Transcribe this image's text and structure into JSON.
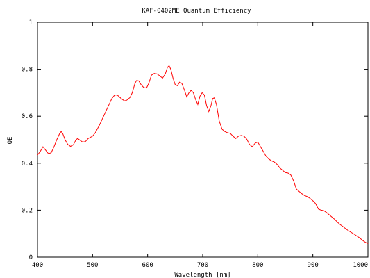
{
  "chart_data": {
    "type": "line",
    "title": "KAF-0402ME Quantum Efficiency",
    "xlabel": "Wavelength [nm]",
    "ylabel": "QE",
    "xlim": [
      400,
      1000
    ],
    "ylim": [
      0,
      1
    ],
    "xticks": [
      "400",
      "500",
      "600",
      "700",
      "800",
      "900",
      "1000"
    ],
    "yticks": [
      "0",
      "0.2",
      "0.4",
      "0.6",
      "0.8",
      "1"
    ],
    "grid": false,
    "series": [
      {
        "color": "#ff0000",
        "points": [
          [
            400,
            0.435
          ],
          [
            405,
            0.45
          ],
          [
            410,
            0.47
          ],
          [
            415,
            0.455
          ],
          [
            420,
            0.44
          ],
          [
            425,
            0.445
          ],
          [
            430,
            0.47
          ],
          [
            435,
            0.5
          ],
          [
            440,
            0.525
          ],
          [
            443,
            0.535
          ],
          [
            446,
            0.525
          ],
          [
            450,
            0.5
          ],
          [
            455,
            0.48
          ],
          [
            460,
            0.472
          ],
          [
            465,
            0.478
          ],
          [
            470,
            0.5
          ],
          [
            473,
            0.505
          ],
          [
            477,
            0.498
          ],
          [
            482,
            0.49
          ],
          [
            487,
            0.492
          ],
          [
            492,
            0.505
          ],
          [
            500,
            0.515
          ],
          [
            505,
            0.53
          ],
          [
            512,
            0.56
          ],
          [
            520,
            0.6
          ],
          [
            528,
            0.64
          ],
          [
            535,
            0.675
          ],
          [
            540,
            0.69
          ],
          [
            545,
            0.69
          ],
          [
            552,
            0.675
          ],
          [
            558,
            0.665
          ],
          [
            562,
            0.668
          ],
          [
            568,
            0.68
          ],
          [
            572,
            0.7
          ],
          [
            577,
            0.74
          ],
          [
            580,
            0.752
          ],
          [
            584,
            0.75
          ],
          [
            588,
            0.735
          ],
          [
            593,
            0.722
          ],
          [
            598,
            0.72
          ],
          [
            602,
            0.74
          ],
          [
            607,
            0.775
          ],
          [
            612,
            0.782
          ],
          [
            617,
            0.78
          ],
          [
            622,
            0.772
          ],
          [
            627,
            0.762
          ],
          [
            632,
            0.78
          ],
          [
            636,
            0.808
          ],
          [
            639,
            0.815
          ],
          [
            642,
            0.8
          ],
          [
            646,
            0.762
          ],
          [
            650,
            0.735
          ],
          [
            654,
            0.73
          ],
          [
            658,
            0.745
          ],
          [
            662,
            0.74
          ],
          [
            667,
            0.71
          ],
          [
            671,
            0.682
          ],
          [
            675,
            0.7
          ],
          [
            679,
            0.71
          ],
          [
            683,
            0.7
          ],
          [
            687,
            0.672
          ],
          [
            691,
            0.65
          ],
          [
            695,
            0.685
          ],
          [
            699,
            0.7
          ],
          [
            703,
            0.69
          ],
          [
            707,
            0.645
          ],
          [
            711,
            0.62
          ],
          [
            715,
            0.645
          ],
          [
            718,
            0.675
          ],
          [
            721,
            0.678
          ],
          [
            725,
            0.65
          ],
          [
            730,
            0.58
          ],
          [
            735,
            0.545
          ],
          [
            740,
            0.535
          ],
          [
            745,
            0.53
          ],
          [
            750,
            0.527
          ],
          [
            755,
            0.515
          ],
          [
            760,
            0.505
          ],
          [
            765,
            0.515
          ],
          [
            770,
            0.518
          ],
          [
            775,
            0.515
          ],
          [
            780,
            0.502
          ],
          [
            785,
            0.48
          ],
          [
            790,
            0.47
          ],
          [
            795,
            0.485
          ],
          [
            800,
            0.49
          ],
          [
            805,
            0.47
          ],
          [
            810,
            0.45
          ],
          [
            815,
            0.43
          ],
          [
            820,
            0.418
          ],
          [
            825,
            0.41
          ],
          [
            830,
            0.405
          ],
          [
            835,
            0.395
          ],
          [
            840,
            0.38
          ],
          [
            845,
            0.37
          ],
          [
            850,
            0.36
          ],
          [
            855,
            0.358
          ],
          [
            860,
            0.35
          ],
          [
            865,
            0.325
          ],
          [
            870,
            0.29
          ],
          [
            875,
            0.28
          ],
          [
            880,
            0.27
          ],
          [
            885,
            0.262
          ],
          [
            890,
            0.258
          ],
          [
            895,
            0.25
          ],
          [
            900,
            0.24
          ],
          [
            905,
            0.228
          ],
          [
            910,
            0.205
          ],
          [
            915,
            0.2
          ],
          [
            920,
            0.198
          ],
          [
            925,
            0.19
          ],
          [
            930,
            0.18
          ],
          [
            935,
            0.17
          ],
          [
            940,
            0.16
          ],
          [
            945,
            0.148
          ],
          [
            950,
            0.138
          ],
          [
            955,
            0.13
          ],
          [
            960,
            0.12
          ],
          [
            965,
            0.112
          ],
          [
            970,
            0.105
          ],
          [
            975,
            0.098
          ],
          [
            980,
            0.09
          ],
          [
            985,
            0.082
          ],
          [
            990,
            0.072
          ],
          [
            995,
            0.064
          ],
          [
            1000,
            0.058
          ]
        ]
      }
    ]
  }
}
